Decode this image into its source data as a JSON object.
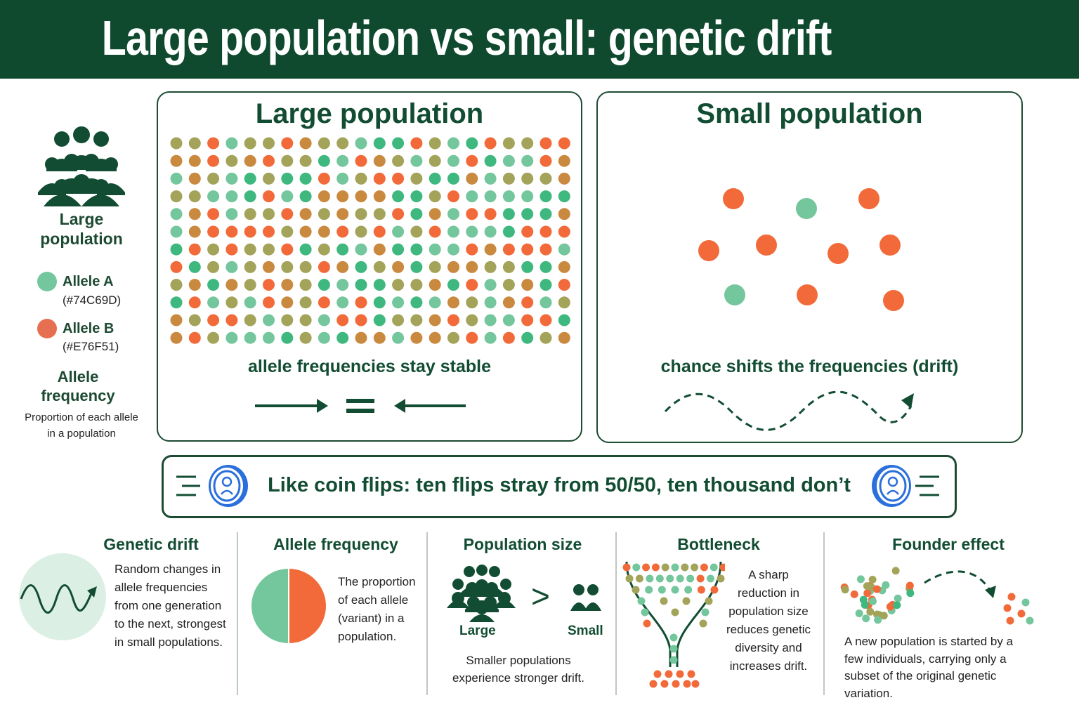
{
  "header": {
    "title": "Large population vs small: genetic drift"
  },
  "legend": {
    "icon": "people-group-icon",
    "title": "Large population",
    "allele_a": {
      "label": "Allele A",
      "hex": "(#74C69D)",
      "color": "#74C69D"
    },
    "allele_b": {
      "label": "Allele B",
      "hex": "(#E76F51)",
      "color": "#E76F51"
    },
    "frequency_title": "Allele frequency",
    "frequency_desc": "Proportion of each allele in a population"
  },
  "colors": {
    "dark_green": "#0f4a2f",
    "olive": "#a3a35a",
    "teal": "#3fb87f",
    "brown": "#c9893f",
    "blue": "#2a6fdb"
  },
  "large_panel": {
    "title": "Large population",
    "caption": "allele frequencies stay stable",
    "icons": [
      "arrow-right-icon",
      "equals-icon",
      "arrow-left-icon"
    ]
  },
  "small_panel": {
    "title": "Small population",
    "caption": "chance shifts the frequencies (drift)",
    "icons": [
      "wavy-arrow-icon"
    ]
  },
  "banner": {
    "text": "Like coin flips: ten flips stray from 50/50, ten thousand don’t",
    "icons": [
      "coin-left-icon",
      "coin-right-icon"
    ]
  },
  "cards": {
    "genetic_drift": {
      "title": "Genetic drift",
      "text": "Random changes in allele frequencies from one generation to the next, strongest in small populations.",
      "icon": "wave-arrow-icon"
    },
    "allele_frequency": {
      "title": "Allele frequency",
      "text": "The proportion of each allele (variant) in a population.",
      "icon": "pie-chart-icon"
    },
    "population_size": {
      "title": "Population size",
      "large_label": "Large",
      "small_label": "Small",
      "symbol": ">",
      "text": "Smaller populations experience stronger drift.",
      "icon": "people-comparison-icon"
    },
    "bottleneck": {
      "title": "Bottleneck",
      "text": "A sharp reduction in population size reduces genetic diversity and increases drift.",
      "icon": "funnel-icon"
    },
    "founder_effect": {
      "title": "Founder effect",
      "text": "A new population is started by a few individuals, carrying only a subset of the original genetic variation.",
      "icon": "founder-arrow-icon"
    }
  }
}
